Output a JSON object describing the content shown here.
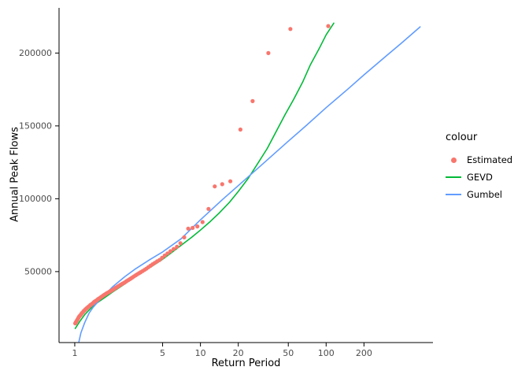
{
  "chart_data": {
    "type": "scatter",
    "title": "",
    "xlabel": "Return Period",
    "ylabel": "Annual Peak Flows",
    "x_scale": "log10",
    "grid": false,
    "x_ticks": [
      1,
      5,
      10,
      20,
      50,
      100,
      200
    ],
    "y_ticks": [
      50000,
      100000,
      150000,
      200000
    ],
    "x_domain_log10": [
      -0.125,
      2.85
    ],
    "y_domain": [
      1300,
      231000
    ],
    "axis_color": "#000000",
    "tick_label_color": "#4d4d4d",
    "legend": {
      "title": "colour",
      "position": "right"
    },
    "series": [
      {
        "name": "Estimated",
        "type": "point",
        "color": "#F8766D",
        "points": [
          [
            104,
            218500
          ],
          [
            52,
            216500
          ],
          [
            34.7,
            200000
          ],
          [
            26,
            167000
          ],
          [
            20.8,
            147500
          ],
          [
            17.3,
            112000
          ],
          [
            14.9,
            110000
          ],
          [
            13,
            108500
          ],
          [
            11.6,
            93000
          ],
          [
            10.4,
            84000
          ],
          [
            9.45,
            81000
          ],
          [
            8.67,
            80000
          ],
          [
            8,
            79500
          ],
          [
            7.43,
            73500
          ],
          [
            6.93,
            69500
          ],
          [
            6.5,
            67000
          ],
          [
            6.12,
            65500
          ],
          [
            5.78,
            64000
          ],
          [
            5.47,
            62500
          ],
          [
            5.2,
            61000
          ],
          [
            4.95,
            59500
          ],
          [
            4.73,
            58000
          ],
          [
            4.52,
            57000
          ],
          [
            4.33,
            56000
          ],
          [
            4.16,
            55000
          ],
          [
            4,
            54000
          ],
          [
            3.85,
            53000
          ],
          [
            3.71,
            52000
          ],
          [
            3.59,
            51200
          ],
          [
            3.47,
            50400
          ],
          [
            3.35,
            49600
          ],
          [
            3.25,
            48900
          ],
          [
            3.15,
            48200
          ],
          [
            3.06,
            47500
          ],
          [
            2.97,
            46800
          ],
          [
            2.89,
            46100
          ],
          [
            2.81,
            45400
          ],
          [
            2.74,
            44800
          ],
          [
            2.67,
            44200
          ],
          [
            2.6,
            43600
          ],
          [
            2.54,
            43000
          ],
          [
            2.48,
            42400
          ],
          [
            2.42,
            41900
          ],
          [
            2.36,
            41400
          ],
          [
            2.31,
            40900
          ],
          [
            2.26,
            40400
          ],
          [
            2.21,
            39900
          ],
          [
            2.17,
            39400
          ],
          [
            2.12,
            38900
          ],
          [
            2.08,
            38400
          ],
          [
            2.04,
            37900
          ],
          [
            2,
            37400
          ],
          [
            1.96,
            37000
          ],
          [
            1.93,
            36600
          ],
          [
            1.89,
            36200
          ],
          [
            1.86,
            35800
          ],
          [
            1.82,
            35400
          ],
          [
            1.79,
            35000
          ],
          [
            1.76,
            34600
          ],
          [
            1.73,
            34200
          ],
          [
            1.7,
            33800
          ],
          [
            1.68,
            33400
          ],
          [
            1.65,
            33000
          ],
          [
            1.63,
            32600
          ],
          [
            1.6,
            32200
          ],
          [
            1.58,
            31800
          ],
          [
            1.55,
            31400
          ],
          [
            1.53,
            31000
          ],
          [
            1.51,
            30600
          ],
          [
            1.49,
            30200
          ],
          [
            1.46,
            29800
          ],
          [
            1.44,
            29400
          ],
          [
            1.42,
            29000
          ],
          [
            1.41,
            28600
          ],
          [
            1.39,
            28200
          ],
          [
            1.37,
            27800
          ],
          [
            1.35,
            27400
          ],
          [
            1.33,
            27000
          ],
          [
            1.32,
            26600
          ],
          [
            1.3,
            26200
          ],
          [
            1.28,
            25800
          ],
          [
            1.27,
            25400
          ],
          [
            1.25,
            25000
          ],
          [
            1.24,
            24600
          ],
          [
            1.22,
            24200
          ],
          [
            1.21,
            23800
          ],
          [
            1.2,
            23400
          ],
          [
            1.18,
            23000
          ],
          [
            1.17,
            22500
          ],
          [
            1.16,
            22000
          ],
          [
            1.14,
            21500
          ],
          [
            1.13,
            21000
          ],
          [
            1.12,
            20500
          ],
          [
            1.11,
            20000
          ],
          [
            1.09,
            19400
          ],
          [
            1.08,
            18800
          ],
          [
            1.07,
            18200
          ],
          [
            1.06,
            17600
          ],
          [
            1.05,
            17000
          ],
          [
            1.04,
            16400
          ],
          [
            1.03,
            15800
          ],
          [
            1.02,
            15200
          ],
          [
            1.01,
            14500
          ]
        ]
      },
      {
        "name": "GEVD",
        "type": "line",
        "color": "#00BA38",
        "points": [
          [
            1.01,
            11000
          ],
          [
            1.1,
            16000
          ],
          [
            1.2,
            20500
          ],
          [
            1.35,
            25000
          ],
          [
            1.5,
            28500
          ],
          [
            1.75,
            32500
          ],
          [
            2,
            36000
          ],
          [
            2.5,
            41500
          ],
          [
            3,
            46500
          ],
          [
            4,
            53000
          ],
          [
            5,
            58500
          ],
          [
            6,
            63500
          ],
          [
            7,
            68000
          ],
          [
            8.5,
            73500
          ],
          [
            10,
            78500
          ],
          [
            12,
            84500
          ],
          [
            14,
            90000
          ],
          [
            17,
            97500
          ],
          [
            20,
            105000
          ],
          [
            24,
            114000
          ],
          [
            28,
            123000
          ],
          [
            34,
            134500
          ],
          [
            40,
            146000
          ],
          [
            47,
            157500
          ],
          [
            55,
            168000
          ],
          [
            65,
            180000
          ],
          [
            75,
            192000
          ],
          [
            88,
            203000
          ],
          [
            100,
            212500
          ],
          [
            115,
            220500
          ]
        ]
      },
      {
        "name": "Gumbel",
        "type": "line",
        "color": "#619CFF",
        "points": [
          [
            1.08,
            2000
          ],
          [
            1.12,
            8000
          ],
          [
            1.2,
            15000
          ],
          [
            1.3,
            21500
          ],
          [
            1.4,
            25500
          ],
          [
            1.5,
            28500
          ],
          [
            1.75,
            34500
          ],
          [
            2,
            39500
          ],
          [
            2.5,
            46500
          ],
          [
            3,
            51500
          ],
          [
            4,
            58500
          ],
          [
            5,
            63500
          ],
          [
            7,
            72500
          ],
          [
            10,
            85500
          ],
          [
            15,
            99500
          ],
          [
            20,
            109000
          ],
          [
            30,
            122500
          ],
          [
            50,
            139500
          ],
          [
            70,
            150500
          ],
          [
            100,
            162500
          ],
          [
            150,
            175500
          ],
          [
            200,
            185000
          ],
          [
            300,
            198000
          ],
          [
            400,
            207000
          ],
          [
            560,
            218000
          ]
        ]
      }
    ]
  }
}
